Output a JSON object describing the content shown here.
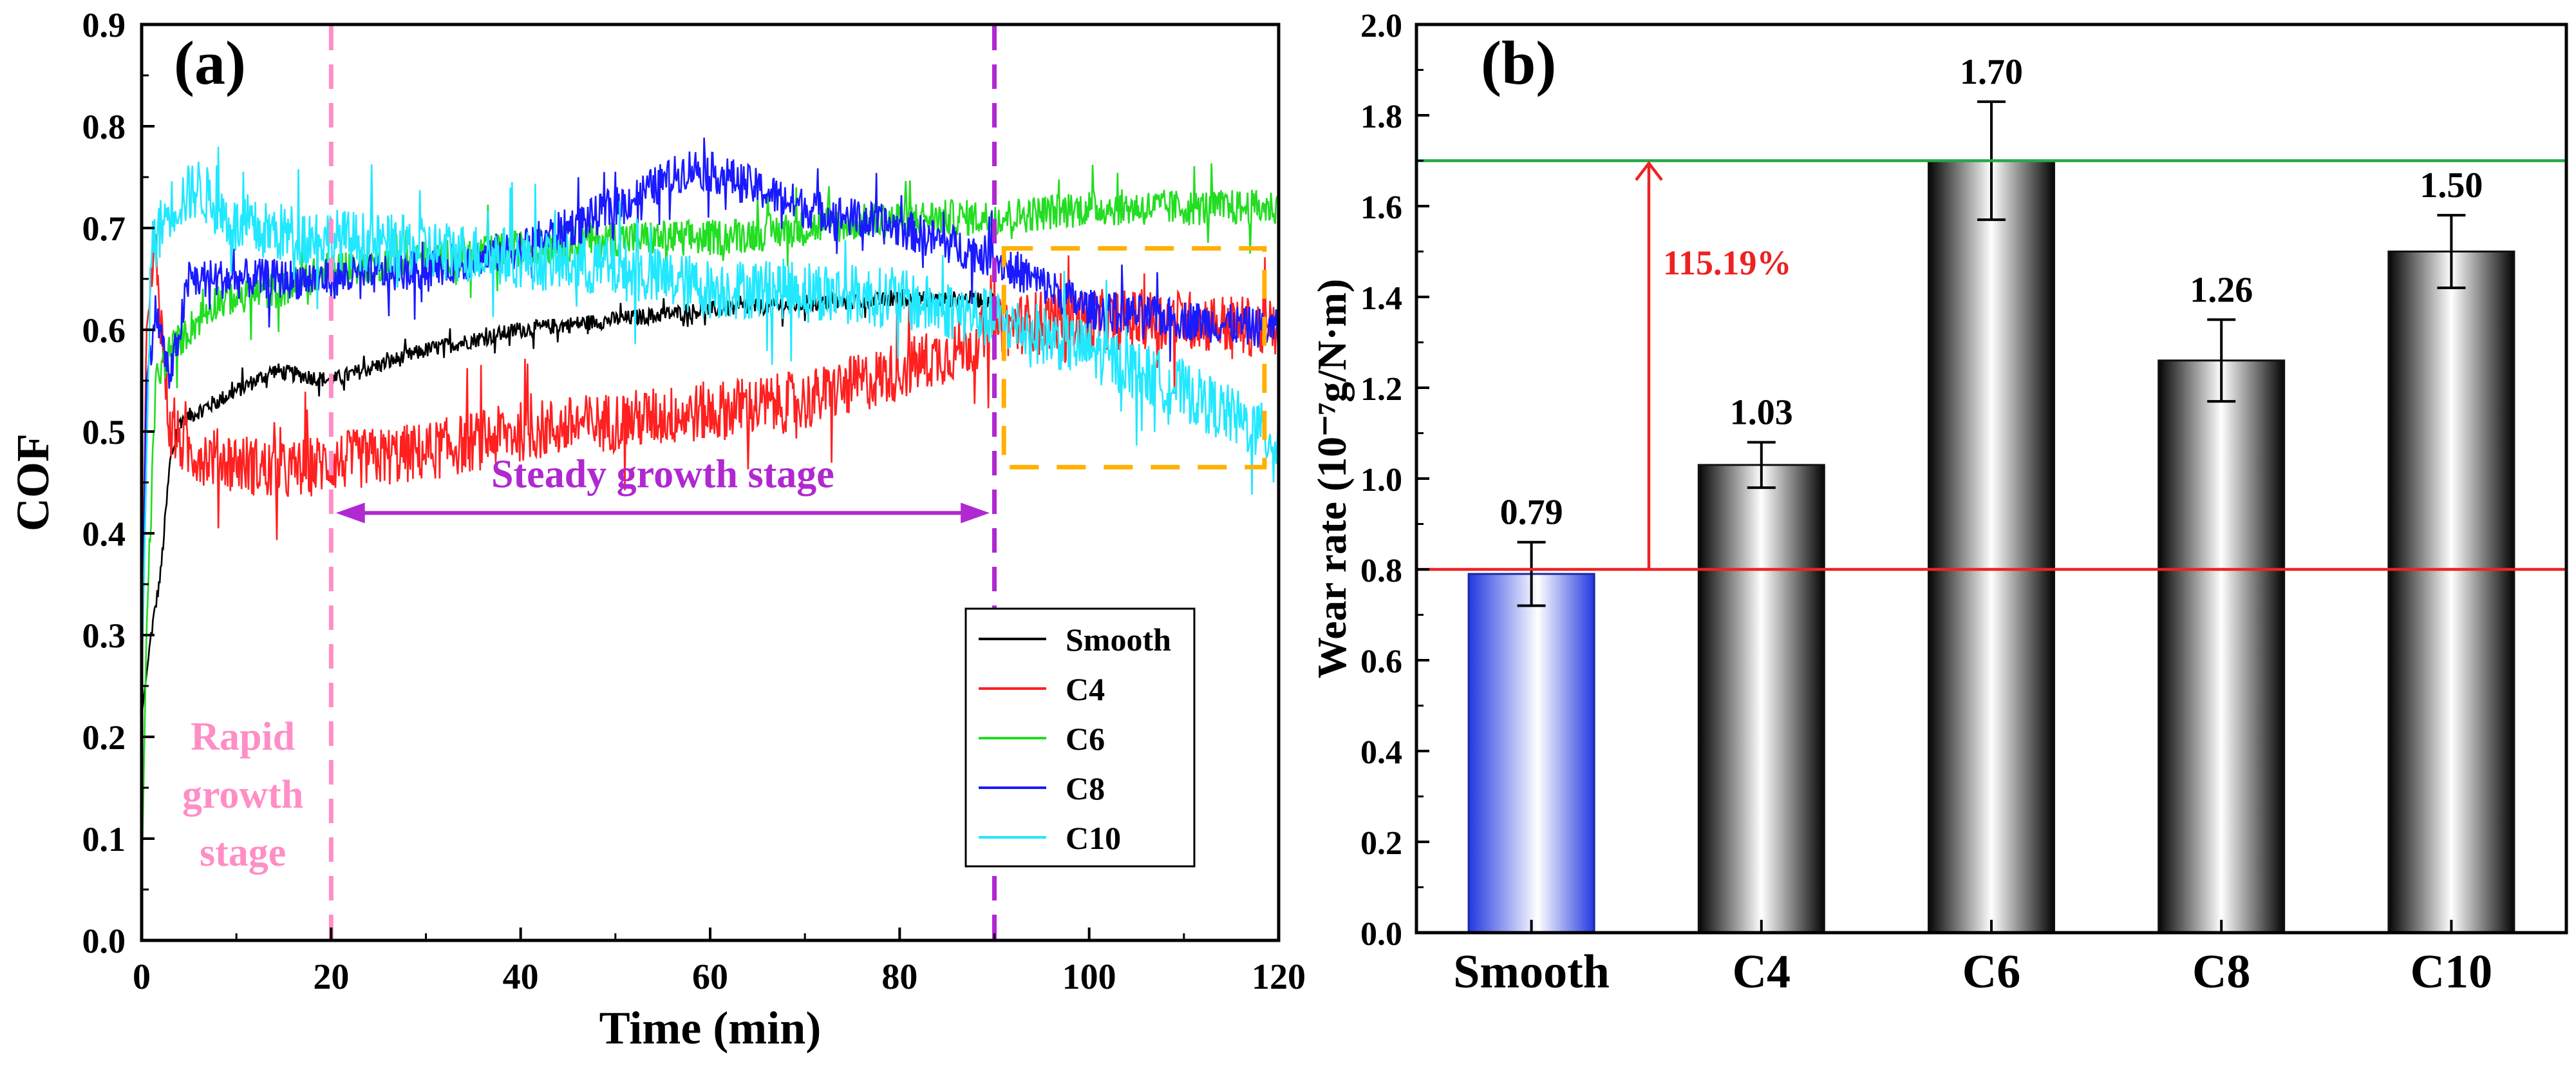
{
  "chart_data": [
    {
      "type": "line",
      "panel_label": "(a)",
      "xlabel": "Time (min)",
      "ylabel": "COF",
      "xlim": [
        0,
        120
      ],
      "ylim": [
        0,
        0.9
      ],
      "xticks": [
        0,
        20,
        40,
        60,
        80,
        100,
        120
      ],
      "yticks": [
        0.0,
        0.1,
        0.2,
        0.3,
        0.4,
        0.5,
        0.6,
        0.7,
        0.8,
        0.9
      ],
      "legend_position": "bottom-right",
      "series": [
        {
          "name": "Smooth",
          "color": "#000000",
          "noise": 0.008,
          "points": [
            [
              0,
              0.22
            ],
            [
              1,
              0.3
            ],
            [
              2,
              0.36
            ],
            [
              3,
              0.47
            ],
            [
              4,
              0.51
            ],
            [
              6,
              0.52
            ],
            [
              10,
              0.54
            ],
            [
              14,
              0.56
            ],
            [
              20,
              0.55
            ],
            [
              30,
              0.58
            ],
            [
              40,
              0.6
            ],
            [
              50,
              0.61
            ],
            [
              60,
              0.62
            ],
            [
              70,
              0.625
            ],
            [
              80,
              0.63
            ],
            [
              90,
              0.63
            ]
          ]
        },
        {
          "name": "C4",
          "color": "#ff2020",
          "noise": 0.03,
          "points": [
            [
              0,
              0.25
            ],
            [
              0.5,
              0.6
            ],
            [
              1.5,
              0.68
            ],
            [
              2.5,
              0.55
            ],
            [
              3,
              0.5
            ],
            [
              5,
              0.48
            ],
            [
              10,
              0.47
            ],
            [
              15,
              0.46
            ],
            [
              20,
              0.47
            ],
            [
              30,
              0.48
            ],
            [
              40,
              0.5
            ],
            [
              50,
              0.51
            ],
            [
              60,
              0.52
            ],
            [
              70,
              0.53
            ],
            [
              80,
              0.56
            ],
            [
              86,
              0.58
            ],
            [
              90,
              0.6
            ],
            [
              95,
              0.61
            ],
            [
              100,
              0.61
            ],
            [
              110,
              0.61
            ],
            [
              120,
              0.6
            ]
          ]
        },
        {
          "name": "C6",
          "color": "#22dd22",
          "noise": 0.018,
          "points": [
            [
              0,
              0.05
            ],
            [
              0.5,
              0.3
            ],
            [
              1.5,
              0.55
            ],
            [
              3,
              0.58
            ],
            [
              5,
              0.6
            ],
            [
              8,
              0.63
            ],
            [
              15,
              0.64
            ],
            [
              20,
              0.66
            ],
            [
              30,
              0.67
            ],
            [
              40,
              0.68
            ],
            [
              50,
              0.69
            ],
            [
              60,
              0.69
            ],
            [
              70,
              0.7
            ],
            [
              80,
              0.71
            ],
            [
              90,
              0.71
            ],
            [
              100,
              0.72
            ],
            [
              110,
              0.72
            ],
            [
              120,
              0.72
            ]
          ]
        },
        {
          "name": "C8",
          "color": "#1a1aff",
          "noise": 0.02,
          "points": [
            [
              0,
              0.25
            ],
            [
              0.5,
              0.55
            ],
            [
              1.5,
              0.62
            ],
            [
              3,
              0.55
            ],
            [
              5,
              0.65
            ],
            [
              10,
              0.65
            ],
            [
              20,
              0.65
            ],
            [
              30,
              0.66
            ],
            [
              40,
              0.68
            ],
            [
              50,
              0.72
            ],
            [
              58,
              0.76
            ],
            [
              62,
              0.75
            ],
            [
              70,
              0.72
            ],
            [
              80,
              0.7
            ],
            [
              90,
              0.67
            ],
            [
              100,
              0.62
            ],
            [
              110,
              0.61
            ],
            [
              120,
              0.6
            ]
          ]
        },
        {
          "name": "C10",
          "color": "#22e8ff",
          "noise": 0.03,
          "points": [
            [
              0,
              0.25
            ],
            [
              1,
              0.68
            ],
            [
              3,
              0.72
            ],
            [
              6,
              0.74
            ],
            [
              10,
              0.7
            ],
            [
              20,
              0.69
            ],
            [
              30,
              0.68
            ],
            [
              40,
              0.67
            ],
            [
              50,
              0.66
            ],
            [
              60,
              0.64
            ],
            [
              70,
              0.64
            ],
            [
              80,
              0.63
            ],
            [
              90,
              0.61
            ],
            [
              100,
              0.58
            ],
            [
              110,
              0.54
            ],
            [
              120,
              0.49
            ]
          ]
        }
      ],
      "annotations": {
        "rapid_stage": [
          "Rapid",
          "growth",
          "stage"
        ],
        "steady_stage": "Steady growth stage",
        "rapid_divider_x": 20,
        "steady_divider_x": 90,
        "highlight_box": {
          "x": [
            91,
            118.5
          ],
          "y": [
            0.465,
            0.68
          ]
        }
      },
      "colors": {
        "rapid": "#ff8ec6",
        "steady": "#b028d0",
        "box": "#ffb000"
      }
    },
    {
      "type": "bar",
      "panel_label": "(b)",
      "xlabel": "",
      "ylabel": "Wear rate (10⁻⁷g/N·m)",
      "categories": [
        "Smooth",
        "C4",
        "C6",
        "C8",
        "C10"
      ],
      "values": [
        0.79,
        1.03,
        1.7,
        1.26,
        1.5
      ],
      "errors": [
        0.07,
        0.05,
        0.13,
        0.09,
        0.08
      ],
      "value_labels": [
        "0.79",
        "1.03",
        "1.70",
        "1.26",
        "1.50"
      ],
      "ylim": [
        0,
        2.0
      ],
      "yticks": [
        0.0,
        0.2,
        0.4,
        0.6,
        0.8,
        1.0,
        1.2,
        1.4,
        1.6,
        1.8,
        2.0
      ],
      "reference_lines": [
        {
          "value": 1.7,
          "color": "#22aa44"
        },
        {
          "value": 0.8,
          "color": "#ee2222"
        }
      ],
      "increase_annotation": {
        "text": "115.19%",
        "from": 0.8,
        "to": 1.7,
        "color": "#ee2222"
      }
    }
  ]
}
